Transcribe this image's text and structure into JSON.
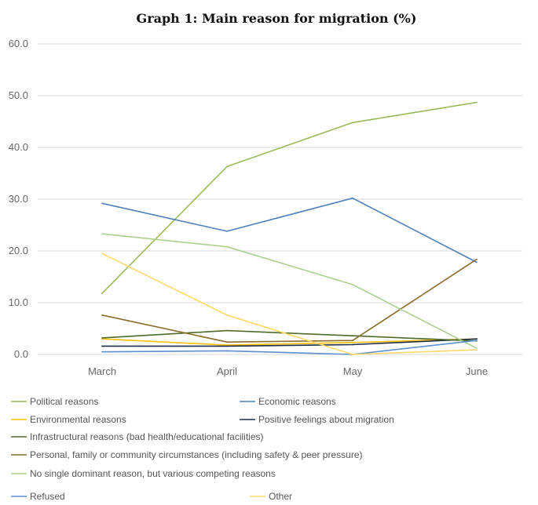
{
  "chart_data": {
    "type": "line",
    "title": "Graph 1: Main reason for migration (%)",
    "categories": [
      "March",
      "April",
      "May",
      "June"
    ],
    "ylim": [
      0,
      60
    ],
    "yticks": [
      "0.0",
      "10.0",
      "20.0",
      "30.0",
      "40.0",
      "50.0",
      "60.0"
    ],
    "grid": true,
    "legend_position": "bottom",
    "series": [
      {
        "name": "Political reasons",
        "color": "#9bbb59",
        "values": [
          11.8,
          36.3,
          44.8,
          48.7
        ]
      },
      {
        "name": "Economic reasons",
        "color": "#4f81bd",
        "values": [
          29.2,
          23.8,
          30.2,
          17.8
        ]
      },
      {
        "name": "Environmental reasons",
        "color": "#ffc000",
        "values": [
          3.0,
          1.8,
          2.3,
          3.0
        ]
      },
      {
        "name": "Positive feelings about migration",
        "color": "#1f2d4d",
        "values": [
          1.6,
          1.6,
          1.9,
          3.0
        ]
      },
      {
        "name": "Infrastructural reasons (bad health/educational facilities)",
        "color": "#4e6b2a",
        "values": [
          3.2,
          4.6,
          3.6,
          2.6
        ]
      },
      {
        "name": "Personal, family or community circumstances (including safety & peer pressure)",
        "color": "#8c6d2c",
        "values": [
          7.6,
          2.4,
          2.7,
          18.4
        ]
      },
      {
        "name": "No single dominant reason, but various competing reasons",
        "color": "#a9d18e",
        "values": [
          23.3,
          20.8,
          13.5,
          1.2
        ]
      },
      {
        "name": "Refused",
        "color": "#5b8fd0",
        "values": [
          0.5,
          0.7,
          0.0,
          2.7
        ]
      },
      {
        "name": "Other",
        "color": "#ffd966",
        "values": [
          19.5,
          7.6,
          0.0,
          0.9
        ]
      }
    ]
  }
}
